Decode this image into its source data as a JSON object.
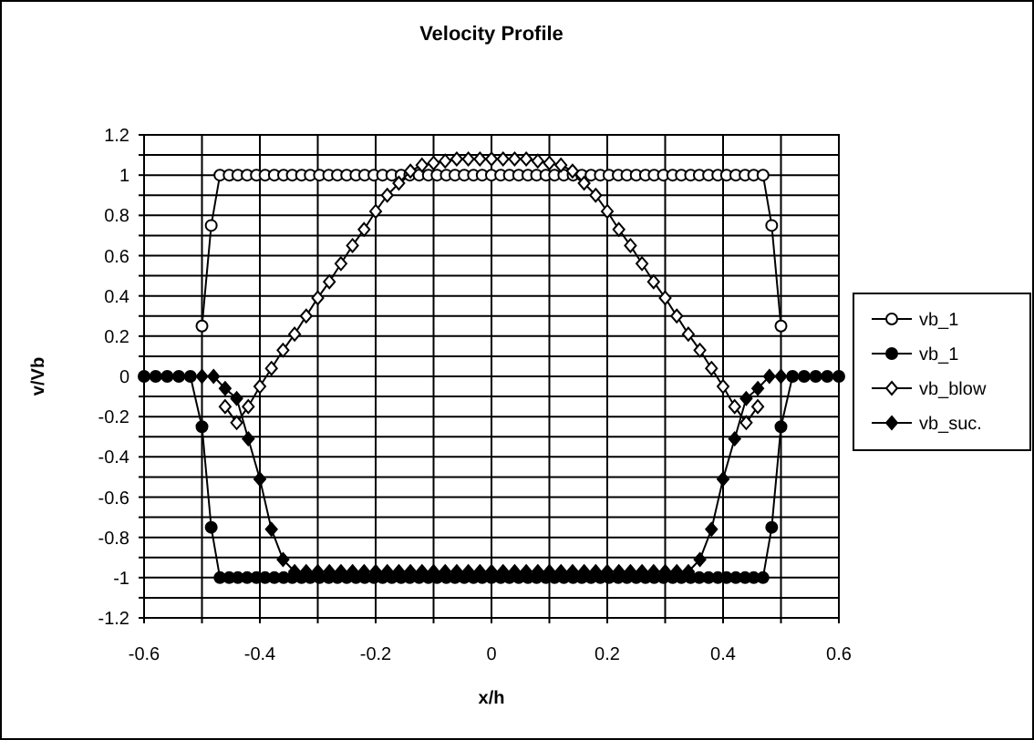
{
  "chart_data": {
    "type": "line",
    "title": "Velocity Profile",
    "xlabel": "x/h",
    "ylabel": "v/Vb",
    "xlim": [
      -0.6,
      0.6
    ],
    "ylim": [
      -1.2,
      1.2
    ],
    "xticks": [
      -0.6,
      {
        "value": -0.5,
        "label": null
      },
      -0.4,
      {
        "value": -0.3,
        "label": null
      },
      -0.2,
      {
        "value": -0.1,
        "label": null
      },
      0,
      {
        "value": 0.1,
        "label": null
      },
      0.2,
      {
        "value": 0.3,
        "label": null
      },
      0.4,
      {
        "value": 0.5,
        "label": null
      },
      0.6
    ],
    "yticks": [
      -1.2,
      {
        "value": -1.1,
        "label": null
      },
      -1,
      {
        "value": -0.9,
        "label": null
      },
      -0.8,
      {
        "value": -0.7,
        "label": null
      },
      -0.6,
      {
        "value": -0.5,
        "label": null
      },
      -0.4,
      {
        "value": -0.3,
        "label": null
      },
      -0.2,
      {
        "value": -0.1,
        "label": null
      },
      0,
      {
        "value": 0.1,
        "label": null
      },
      0.2,
      {
        "value": 0.3,
        "label": null
      },
      0.4,
      {
        "value": 0.5,
        "label": null
      },
      0.6,
      {
        "value": 0.7,
        "label": null
      },
      0.8,
      {
        "value": 0.9,
        "label": null
      },
      1,
      {
        "value": 1.1,
        "label": null
      },
      1.2
    ],
    "grid": true,
    "legend": "right",
    "line_style": "solid",
    "series": [
      {
        "name": "vb_1",
        "color": "#000000",
        "marker": "circle",
        "x": [
          -0.5,
          -0.484,
          -0.469,
          -0.453,
          -0.438,
          -0.422,
          -0.406,
          -0.391,
          -0.375,
          -0.359,
          -0.344,
          -0.328,
          -0.313,
          -0.297,
          -0.281,
          -0.266,
          -0.25,
          -0.234,
          -0.219,
          -0.203,
          -0.188,
          -0.172,
          -0.156,
          -0.141,
          -0.125,
          -0.109,
          -0.094,
          -0.078,
          -0.063,
          -0.047,
          -0.031,
          -0.016,
          0,
          0.016,
          0.031,
          0.047,
          0.063,
          0.078,
          0.094,
          0.109,
          0.125,
          0.141,
          0.156,
          0.172,
          0.188,
          0.203,
          0.219,
          0.234,
          0.25,
          0.266,
          0.281,
          0.297,
          0.313,
          0.328,
          0.344,
          0.359,
          0.375,
          0.391,
          0.406,
          0.422,
          0.438,
          0.453,
          0.469,
          0.484,
          0.5
        ],
        "values": [
          0.25,
          0.75,
          1,
          1,
          1,
          1,
          1,
          1,
          1,
          1,
          1,
          1,
          1,
          1,
          1,
          1,
          1,
          1,
          1,
          1,
          1,
          1,
          1,
          1,
          1,
          1,
          1,
          1,
          1,
          1,
          1,
          1,
          1,
          1,
          1,
          1,
          1,
          1,
          1,
          1,
          1,
          1,
          1,
          1,
          1,
          1,
          1,
          1,
          1,
          1,
          1,
          1,
          1,
          1,
          1,
          1,
          1,
          1,
          1,
          1,
          1,
          1,
          1,
          0.75,
          0.25
        ]
      },
      {
        "name": "vb_1",
        "color": "#000000",
        "marker": "circle",
        "x": [
          -0.6,
          -0.58,
          -0.56,
          -0.54,
          -0.52,
          -0.5,
          -0.484,
          -0.469,
          -0.453,
          -0.438,
          -0.422,
          -0.406,
          -0.391,
          -0.375,
          -0.359,
          -0.344,
          -0.328,
          -0.313,
          -0.297,
          -0.281,
          -0.266,
          -0.25,
          -0.234,
          -0.219,
          -0.203,
          -0.188,
          -0.172,
          -0.156,
          -0.141,
          -0.125,
          -0.109,
          -0.094,
          -0.078,
          -0.063,
          -0.047,
          -0.031,
          -0.016,
          0,
          0.016,
          0.031,
          0.047,
          0.063,
          0.078,
          0.094,
          0.109,
          0.125,
          0.141,
          0.156,
          0.172,
          0.188,
          0.203,
          0.219,
          0.234,
          0.25,
          0.266,
          0.281,
          0.297,
          0.313,
          0.328,
          0.344,
          0.359,
          0.375,
          0.391,
          0.406,
          0.422,
          0.438,
          0.453,
          0.469,
          0.484,
          0.5,
          0.52,
          0.54,
          0.56,
          0.58,
          0.6
        ],
        "values": [
          0,
          0,
          0,
          0,
          0,
          -0.25,
          -0.75,
          -1,
          -1,
          -1,
          -1,
          -1,
          -1,
          -1,
          -1,
          -1,
          -1,
          -1,
          -1,
          -1,
          -1,
          -1,
          -1,
          -1,
          -1,
          -1,
          -1,
          -1,
          -1,
          -1,
          -1,
          -1,
          -1,
          -1,
          -1,
          -1,
          -1,
          -1,
          -1,
          -1,
          -1,
          -1,
          -1,
          -1,
          -1,
          -1,
          -1,
          -1,
          -1,
          -1,
          -1,
          -1,
          -1,
          -1,
          -1,
          -1,
          -1,
          -1,
          -1,
          -1,
          -1,
          -1,
          -1,
          -1,
          -1,
          -1,
          -1,
          -1,
          -0.75,
          -0.25,
          0,
          0,
          0,
          0,
          0
        ]
      },
      {
        "name": "vb_blow",
        "color": "#000000",
        "marker": "diamond",
        "x": [
          -0.46,
          -0.44,
          -0.42,
          -0.4,
          -0.38,
          -0.36,
          -0.34,
          -0.32,
          -0.3,
          -0.28,
          -0.26,
          -0.24,
          -0.22,
          -0.2,
          -0.18,
          -0.16,
          -0.14,
          -0.12,
          -0.1,
          -0.08,
          -0.06,
          -0.04,
          -0.02,
          0,
          0.02,
          0.04,
          0.06,
          0.08,
          0.1,
          0.12,
          0.14,
          0.16,
          0.18,
          0.2,
          0.22,
          0.24,
          0.26,
          0.28,
          0.3,
          0.32,
          0.34,
          0.36,
          0.38,
          0.4,
          0.42,
          0.44,
          0.46
        ],
        "values": [
          -0.15,
          -0.23,
          -0.15,
          -0.05,
          0.04,
          0.13,
          0.21,
          0.3,
          0.39,
          0.47,
          0.56,
          0.65,
          0.73,
          0.82,
          0.9,
          0.96,
          1.02,
          1.05,
          1.06,
          1.07,
          1.08,
          1.08,
          1.08,
          1.08,
          1.08,
          1.08,
          1.08,
          1.07,
          1.06,
          1.05,
          1.02,
          0.96,
          0.9,
          0.82,
          0.73,
          0.65,
          0.56,
          0.47,
          0.39,
          0.3,
          0.21,
          0.13,
          0.04,
          -0.05,
          -0.15,
          -0.23,
          -0.15
        ]
      },
      {
        "name": "vb_suc.",
        "color": "#000000",
        "marker": "diamond",
        "x": [
          -0.5,
          -0.48,
          -0.46,
          -0.44,
          -0.42,
          -0.4,
          -0.38,
          -0.36,
          -0.34,
          -0.32,
          -0.3,
          -0.28,
          -0.26,
          -0.24,
          -0.22,
          -0.2,
          -0.18,
          -0.16,
          -0.14,
          -0.12,
          -0.1,
          -0.08,
          -0.06,
          -0.04,
          -0.02,
          0,
          0.02,
          0.04,
          0.06,
          0.08,
          0.1,
          0.12,
          0.14,
          0.16,
          0.18,
          0.2,
          0.22,
          0.24,
          0.26,
          0.28,
          0.3,
          0.32,
          0.34,
          0.36,
          0.38,
          0.4,
          0.42,
          0.44,
          0.46,
          0.48,
          0.5
        ],
        "values": [
          0,
          0,
          -0.06,
          -0.11,
          -0.31,
          -0.51,
          -0.76,
          -0.91,
          -0.97,
          -0.97,
          -0.97,
          -0.97,
          -0.97,
          -0.97,
          -0.97,
          -0.97,
          -0.97,
          -0.97,
          -0.97,
          -0.97,
          -0.97,
          -0.97,
          -0.97,
          -0.97,
          -0.97,
          -0.97,
          -0.97,
          -0.97,
          -0.97,
          -0.97,
          -0.97,
          -0.97,
          -0.97,
          -0.97,
          -0.97,
          -0.97,
          -0.97,
          -0.97,
          -0.97,
          -0.97,
          -0.97,
          -0.97,
          -0.97,
          -0.91,
          -0.76,
          -0.51,
          -0.31,
          -0.11,
          -0.06,
          0,
          0
        ]
      }
    ]
  }
}
